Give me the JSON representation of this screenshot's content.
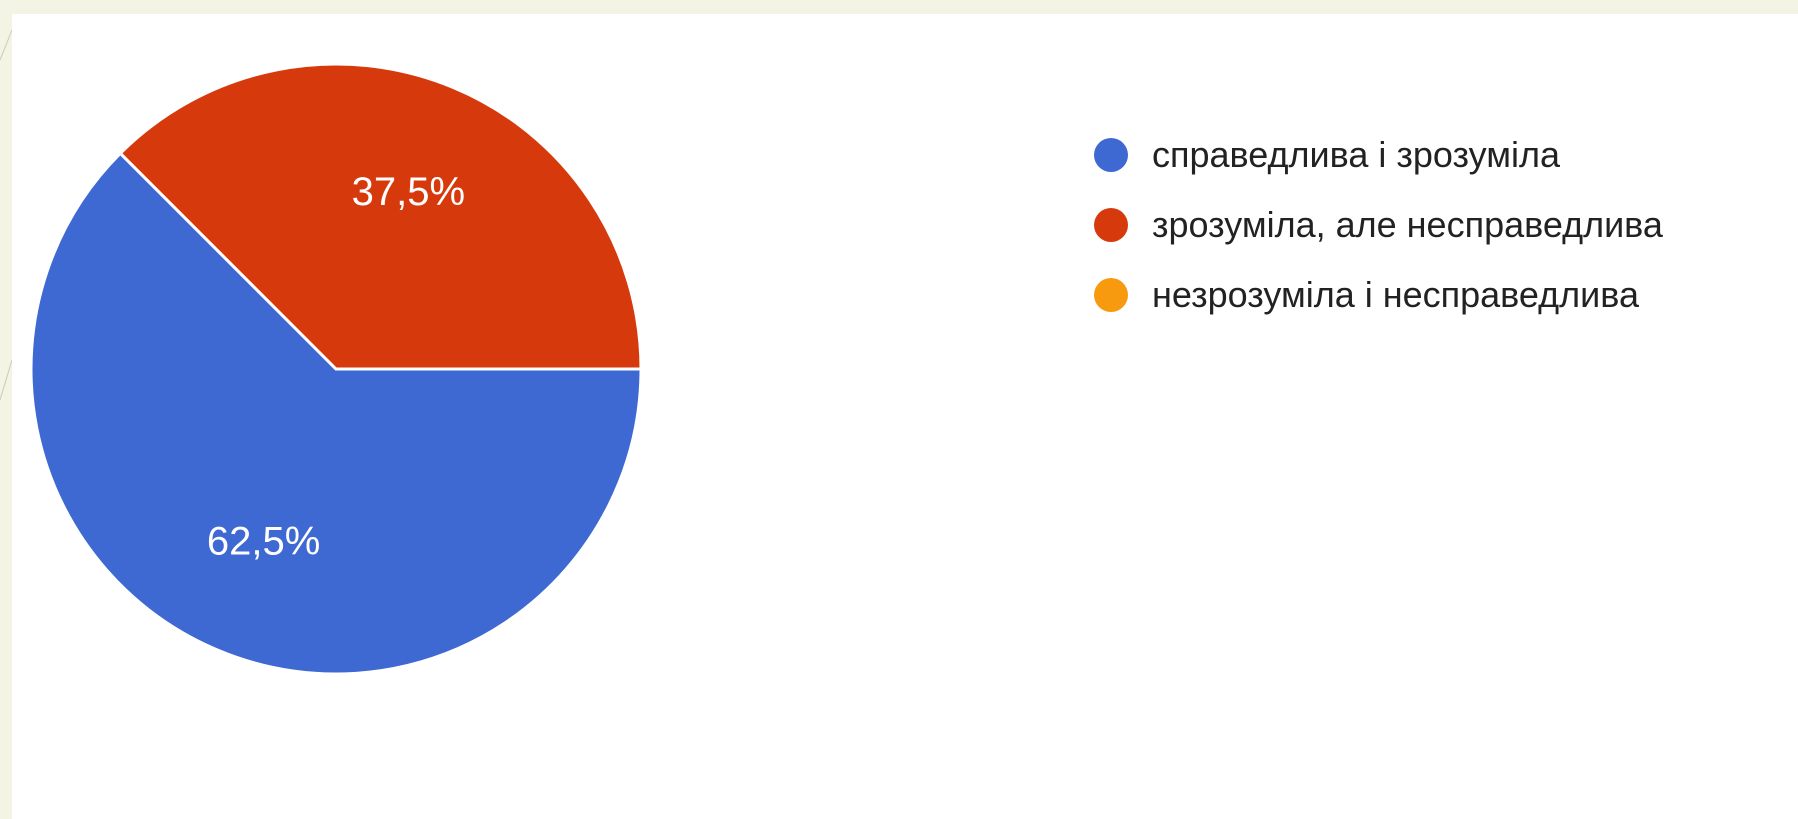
{
  "chart_data": {
    "type": "pie",
    "title": "",
    "legend_position": "right",
    "slices": [
      {
        "label": "справедлива і зрозуміла",
        "value": 62.5,
        "display": "62,5%",
        "color": "#3e68d2"
      },
      {
        "label": "зрозуміла, але несправедлива",
        "value": 37.5,
        "display": "37,5%",
        "color": "#d63a0c"
      },
      {
        "label": "незрозуміла і несправедлива",
        "value": 0,
        "display": "",
        "color": "#f79a10"
      }
    ]
  }
}
